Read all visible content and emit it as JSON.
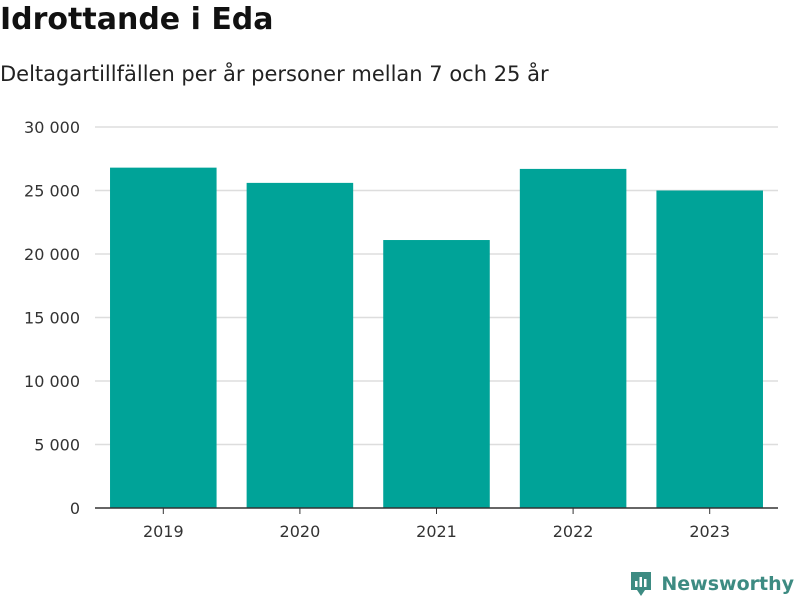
{
  "title": "Idrottande i Eda",
  "subtitle": "Deltagartillfällen per år personer mellan 7 och 25 år",
  "brand": "Newsworthy",
  "colors": {
    "bar": "#00a398",
    "grid": "#dddddd",
    "axis": "#333333",
    "brand": "#3d8b82"
  },
  "chart_data": {
    "type": "bar",
    "categories": [
      "2019",
      "2020",
      "2021",
      "2022",
      "2023"
    ],
    "values": [
      26800,
      25600,
      21100,
      26700,
      25000
    ],
    "yticks": [
      0,
      5000,
      10000,
      15000,
      20000,
      25000,
      30000
    ],
    "ytick_labels": [
      "0",
      "5 000",
      "10 000",
      "15 000",
      "20 000",
      "25 000",
      "30 000"
    ],
    "ylim": [
      0,
      30000
    ],
    "grid": true,
    "legend": false
  }
}
